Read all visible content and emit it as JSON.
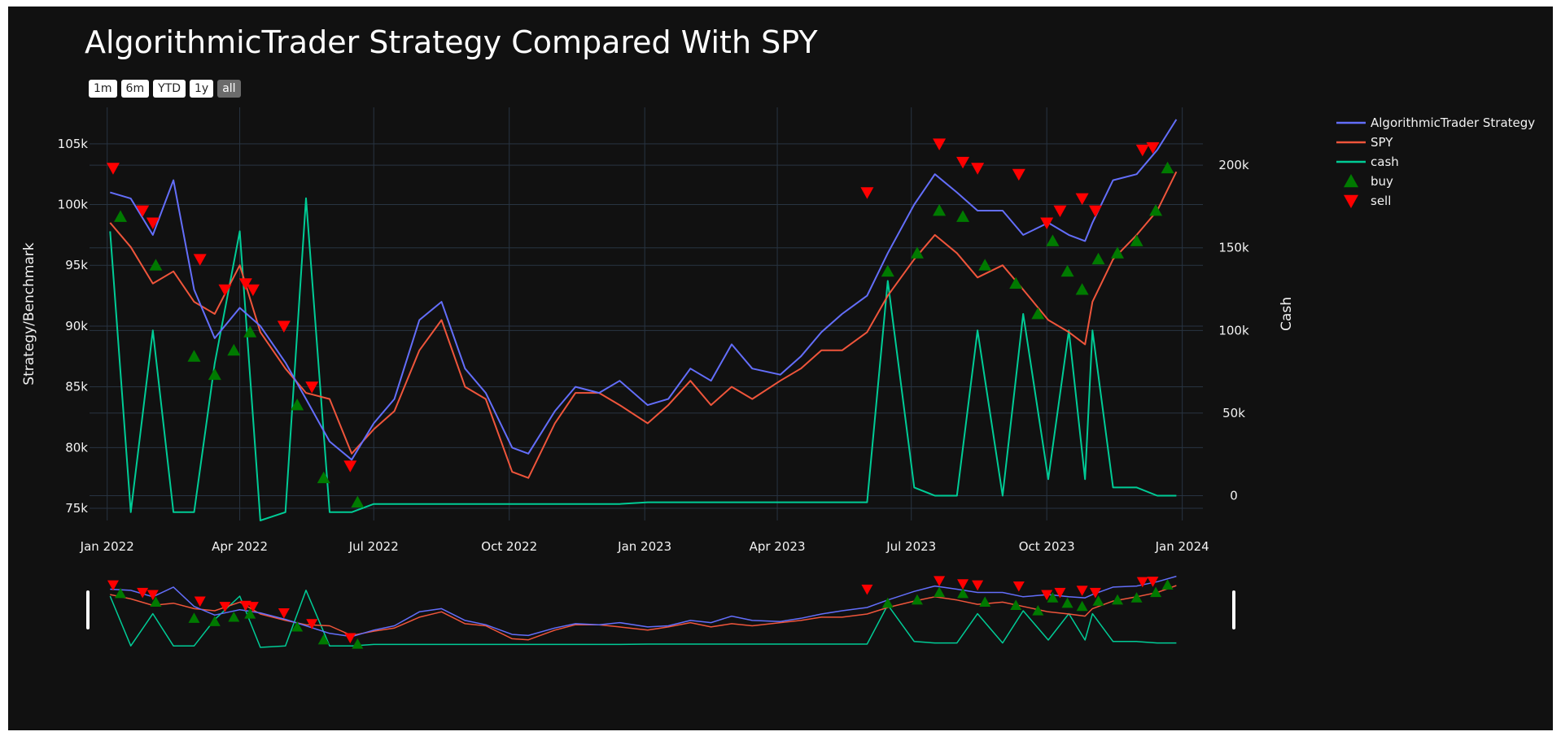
{
  "chart_data": {
    "type": "line",
    "title": "AlgorithmicTrader Strategy Compared With SPY",
    "range_buttons": [
      "1m",
      "6m",
      "YTD",
      "1y",
      "all"
    ],
    "active_range": "all",
    "x": [
      "2022-01-03",
      "2022-01-17",
      "2022-02-01",
      "2022-02-15",
      "2022-03-01",
      "2022-03-15",
      "2022-04-01",
      "2022-04-15",
      "2022-05-02",
      "2022-05-16",
      "2022-06-01",
      "2022-06-16",
      "2022-07-01",
      "2022-07-15",
      "2022-08-01",
      "2022-08-16",
      "2022-09-01",
      "2022-09-15",
      "2022-10-03",
      "2022-10-14",
      "2022-11-01",
      "2022-11-15",
      "2022-12-01",
      "2022-12-15",
      "2023-01-03",
      "2023-01-17",
      "2023-02-01",
      "2023-02-15",
      "2023-03-01",
      "2023-03-15",
      "2023-04-03",
      "2023-04-17",
      "2023-05-01",
      "2023-05-15",
      "2023-06-01",
      "2023-06-15",
      "2023-07-03",
      "2023-07-17",
      "2023-08-01",
      "2023-08-15",
      "2023-09-01",
      "2023-09-15",
      "2023-10-02",
      "2023-10-16",
      "2023-10-27",
      "2023-11-01",
      "2023-11-15",
      "2023-12-01",
      "2023-12-15",
      "2023-12-28"
    ],
    "x_ticks": [
      "Jan 2022",
      "Apr 2022",
      "Jul 2022",
      "Oct 2022",
      "Jan 2023",
      "Apr 2023",
      "Jul 2023",
      "Oct 2023",
      "Jan 2024"
    ],
    "xlim": [
      "2021-12-20",
      "2024-01-15"
    ],
    "yaxis_left": {
      "title": "Strategy/Benchmark",
      "ticks": [
        "75k",
        "80k",
        "85k",
        "90k",
        "95k",
        "100k",
        "105k"
      ],
      "range": [
        74000,
        108000
      ]
    },
    "yaxis_right": {
      "title": "Cash",
      "ticks": [
        "0",
        "50k",
        "100k",
        "150k",
        "200k"
      ],
      "range": [
        -15000,
        235000
      ]
    },
    "grid": true,
    "legend_position": "top-right",
    "colors": {
      "strategy": "#636efa",
      "spy": "#ef553b",
      "cash": "#00cc96",
      "buy": "#007a00",
      "sell": "#ff0000",
      "background": "#111111",
      "grid": "#283442"
    },
    "series": [
      {
        "name": "AlgorithmicTrader Strategy",
        "axis": "left",
        "values": [
          101000,
          100500,
          97500,
          102000,
          93000,
          89000,
          91500,
          90000,
          87000,
          84000,
          80500,
          79000,
          82000,
          84000,
          90500,
          92000,
          86500,
          84500,
          80000,
          79500,
          83000,
          85000,
          84500,
          85500,
          83500,
          84000,
          86500,
          85500,
          88500,
          86500,
          86000,
          87500,
          89500,
          91000,
          92500,
          96000,
          100000,
          102500,
          101000,
          99500,
          99500,
          97500,
          98500,
          97500,
          97000,
          98500,
          102000,
          102500,
          104500,
          107000
        ]
      },
      {
        "name": "SPY",
        "axis": "left",
        "values": [
          98500,
          96500,
          93500,
          94500,
          92000,
          91000,
          95000,
          89500,
          86500,
          84500,
          84000,
          79500,
          81500,
          83000,
          88000,
          90500,
          85000,
          84000,
          78000,
          77500,
          82000,
          84500,
          84500,
          83500,
          82000,
          83500,
          85500,
          83500,
          85000,
          84000,
          85500,
          86500,
          88000,
          88000,
          89500,
          92500,
          95500,
          97500,
          96000,
          94000,
          95000,
          93000,
          90500,
          89500,
          88500,
          92000,
          95500,
          97500,
          99500,
          102700
        ]
      },
      {
        "name": "cash",
        "axis": "right",
        "values": [
          160000,
          -10000,
          100000,
          -10000,
          -10000,
          80000,
          160000,
          -15000,
          -10000,
          180000,
          -10000,
          -10000,
          -5000,
          -5000,
          -5000,
          -5000,
          -5000,
          -5000,
          -5000,
          -5000,
          -5000,
          -5000,
          -5000,
          -5000,
          -4000,
          -4000,
          -4000,
          -4000,
          -4000,
          -4000,
          -4000,
          -4000,
          -4000,
          -4000,
          -4000,
          130000,
          5000,
          0,
          0,
          100000,
          0,
          110000,
          10000,
          100000,
          10000,
          100000,
          5000,
          5000,
          0,
          0
        ]
      },
      {
        "name": "buy",
        "type": "marker",
        "axis": "left",
        "x": [
          "2022-01-10",
          "2022-02-03",
          "2022-03-01",
          "2022-03-15",
          "2022-03-28",
          "2022-04-08",
          "2022-05-10",
          "2022-05-28",
          "2022-06-20",
          "2023-06-15",
          "2023-07-05",
          "2023-07-20",
          "2023-08-05",
          "2023-08-20",
          "2023-09-10",
          "2023-09-25",
          "2023-10-05",
          "2023-10-15",
          "2023-10-25",
          "2023-11-05",
          "2023-11-18",
          "2023-12-01",
          "2023-12-14",
          "2023-12-22"
        ],
        "values": [
          99000,
          95000,
          87500,
          86000,
          88000,
          89500,
          83500,
          77500,
          75500,
          94500,
          96000,
          99500,
          99000,
          95000,
          93500,
          91000,
          97000,
          94500,
          93000,
          95500,
          96000,
          97000,
          99500,
          103000
        ]
      },
      {
        "name": "sell",
        "type": "marker",
        "axis": "left",
        "x": [
          "2022-01-05",
          "2022-01-25",
          "2022-02-01",
          "2022-03-05",
          "2022-03-22",
          "2022-04-05",
          "2022-04-10",
          "2022-05-01",
          "2022-05-20",
          "2022-06-15",
          "2023-06-01",
          "2023-07-20",
          "2023-08-05",
          "2023-08-15",
          "2023-09-12",
          "2023-10-01",
          "2023-10-10",
          "2023-10-25",
          "2023-11-03",
          "2023-12-05",
          "2023-12-12"
        ],
        "values": [
          103000,
          99500,
          98500,
          95500,
          93000,
          93500,
          93000,
          90000,
          85000,
          78500,
          101000,
          105000,
          103500,
          103000,
          102500,
          98500,
          99500,
          100500,
          99500,
          104500,
          104700
        ]
      }
    ]
  }
}
